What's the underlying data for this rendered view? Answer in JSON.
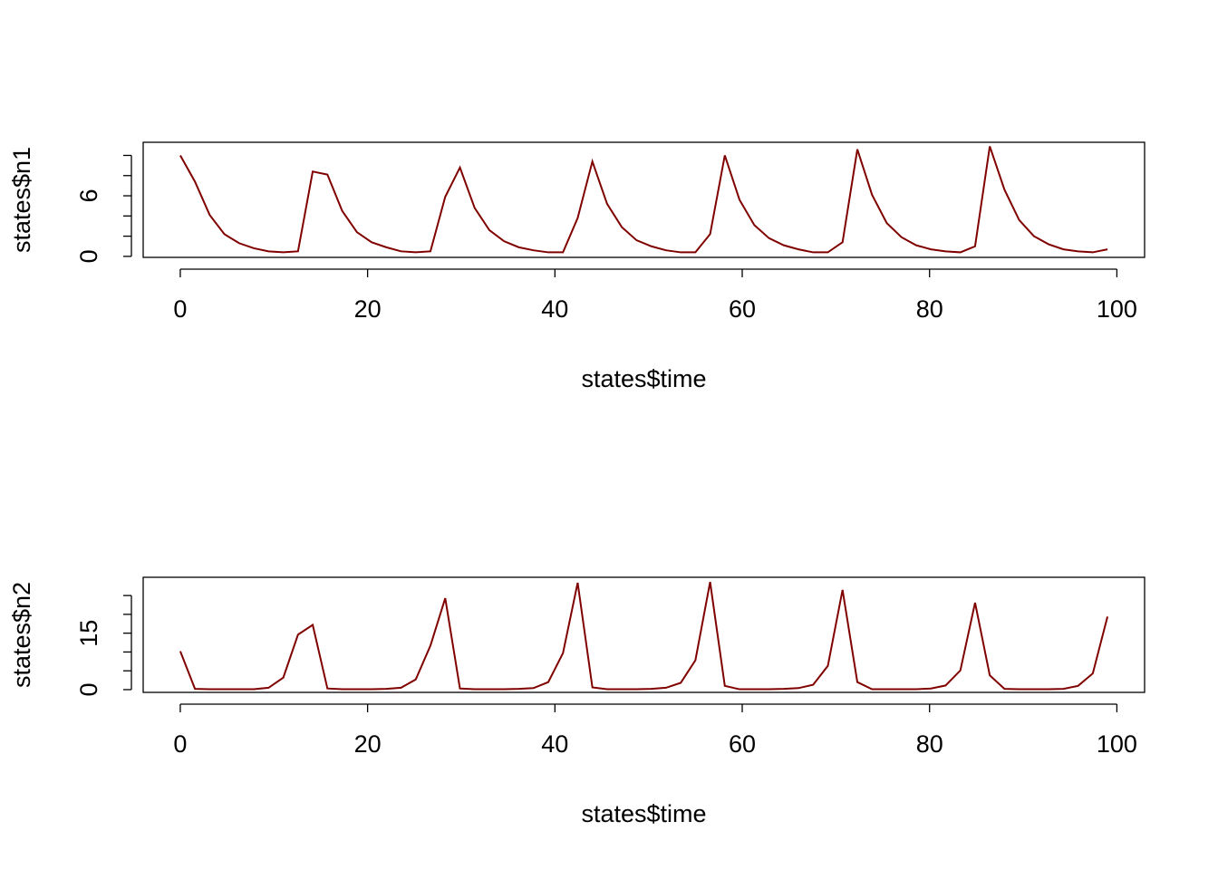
{
  "chart_data": [
    {
      "type": "line",
      "xlabel": "states$time",
      "ylabel": "states$n1",
      "color": "#800000",
      "x": [
        0,
        1.57,
        3.14,
        4.71,
        6.29,
        7.86,
        9.43,
        11.0,
        12.57,
        14.14,
        15.71,
        17.29,
        18.86,
        20.43,
        22.0,
        23.57,
        25.14,
        26.71,
        28.29,
        29.86,
        31.43,
        33.0,
        34.57,
        36.14,
        37.71,
        39.29,
        40.86,
        42.43,
        44.0,
        45.57,
        47.14,
        48.71,
        50.29,
        51.86,
        53.43,
        55.0,
        56.57,
        58.14,
        59.71,
        61.29,
        62.86,
        64.43,
        66.0,
        67.57,
        69.14,
        70.71,
        72.29,
        73.86,
        75.43,
        77.0,
        78.57,
        80.14,
        81.71,
        83.29,
        84.86,
        86.43,
        88.0,
        89.57,
        91.14,
        92.71,
        94.29,
        95.86,
        97.43,
        99.0
      ],
      "values": [
        10.0,
        7.4,
        4.1,
        2.2,
        1.3,
        0.8,
        0.5,
        0.4,
        0.5,
        8.4,
        8.1,
        4.5,
        2.4,
        1.4,
        0.9,
        0.5,
        0.4,
        0.5,
        5.9,
        8.8,
        4.8,
        2.6,
        1.5,
        0.9,
        0.6,
        0.4,
        0.4,
        3.8,
        9.4,
        5.2,
        2.9,
        1.6,
        1.0,
        0.6,
        0.4,
        0.4,
        2.2,
        10.0,
        5.6,
        3.1,
        1.8,
        1.1,
        0.7,
        0.4,
        0.4,
        1.4,
        10.6,
        6.1,
        3.3,
        1.9,
        1.1,
        0.7,
        0.5,
        0.4,
        1.0,
        10.9,
        6.6,
        3.6,
        2.0,
        1.2,
        0.7,
        0.5,
        0.4,
        0.7
      ],
      "xlim": [
        -3.96,
        102.96
      ],
      "xticks": [
        0,
        20,
        40,
        60,
        80,
        100
      ],
      "ylim": [
        -0.1,
        11.3
      ],
      "yticks": [
        0,
        6
      ],
      "yminorticks": [
        2,
        4,
        8,
        10
      ]
    },
    {
      "type": "line",
      "xlabel": "states$time",
      "ylabel": "states$n2",
      "color": "#800000",
      "x": [
        0,
        1.57,
        3.14,
        4.71,
        6.29,
        7.86,
        9.43,
        11.0,
        12.57,
        14.14,
        15.71,
        17.29,
        18.86,
        20.43,
        22.0,
        23.57,
        25.14,
        26.71,
        28.29,
        29.86,
        31.43,
        33.0,
        34.57,
        36.14,
        37.71,
        39.29,
        40.86,
        42.43,
        44.0,
        45.57,
        47.14,
        48.71,
        50.29,
        51.86,
        53.43,
        55.0,
        56.57,
        58.14,
        59.71,
        61.29,
        62.86,
        64.43,
        66.0,
        67.57,
        69.14,
        70.71,
        72.29,
        73.86,
        75.43,
        77.0,
        78.57,
        80.14,
        81.71,
        83.29,
        84.86,
        86.43,
        88.0,
        89.57,
        91.14,
        92.71,
        94.29,
        95.86,
        97.43,
        99.0
      ],
      "values": [
        10.2,
        0.2,
        0.1,
        0.1,
        0.1,
        0.1,
        0.5,
        3.2,
        14.6,
        17.2,
        0.3,
        0.1,
        0.1,
        0.1,
        0.2,
        0.5,
        2.7,
        11.7,
        24.3,
        0.3,
        0.1,
        0.1,
        0.1,
        0.2,
        0.4,
        2.0,
        9.7,
        28.4,
        0.6,
        0.1,
        0.1,
        0.1,
        0.2,
        0.5,
        1.8,
        7.8,
        28.6,
        1.0,
        0.1,
        0.1,
        0.1,
        0.2,
        0.4,
        1.3,
        6.3,
        26.5,
        2.0,
        0.1,
        0.1,
        0.1,
        0.1,
        0.3,
        1.1,
        5.1,
        23.1,
        3.8,
        0.2,
        0.1,
        0.1,
        0.1,
        0.2,
        1.0,
        4.3,
        19.4
      ],
      "xlim": [
        -3.96,
        102.96
      ],
      "xticks": [
        0,
        20,
        40,
        60,
        80,
        100
      ],
      "ylim": [
        -0.73,
        29.85
      ],
      "yticks": [
        0,
        15
      ],
      "yminorticks": [
        5,
        10,
        20,
        25
      ]
    }
  ]
}
